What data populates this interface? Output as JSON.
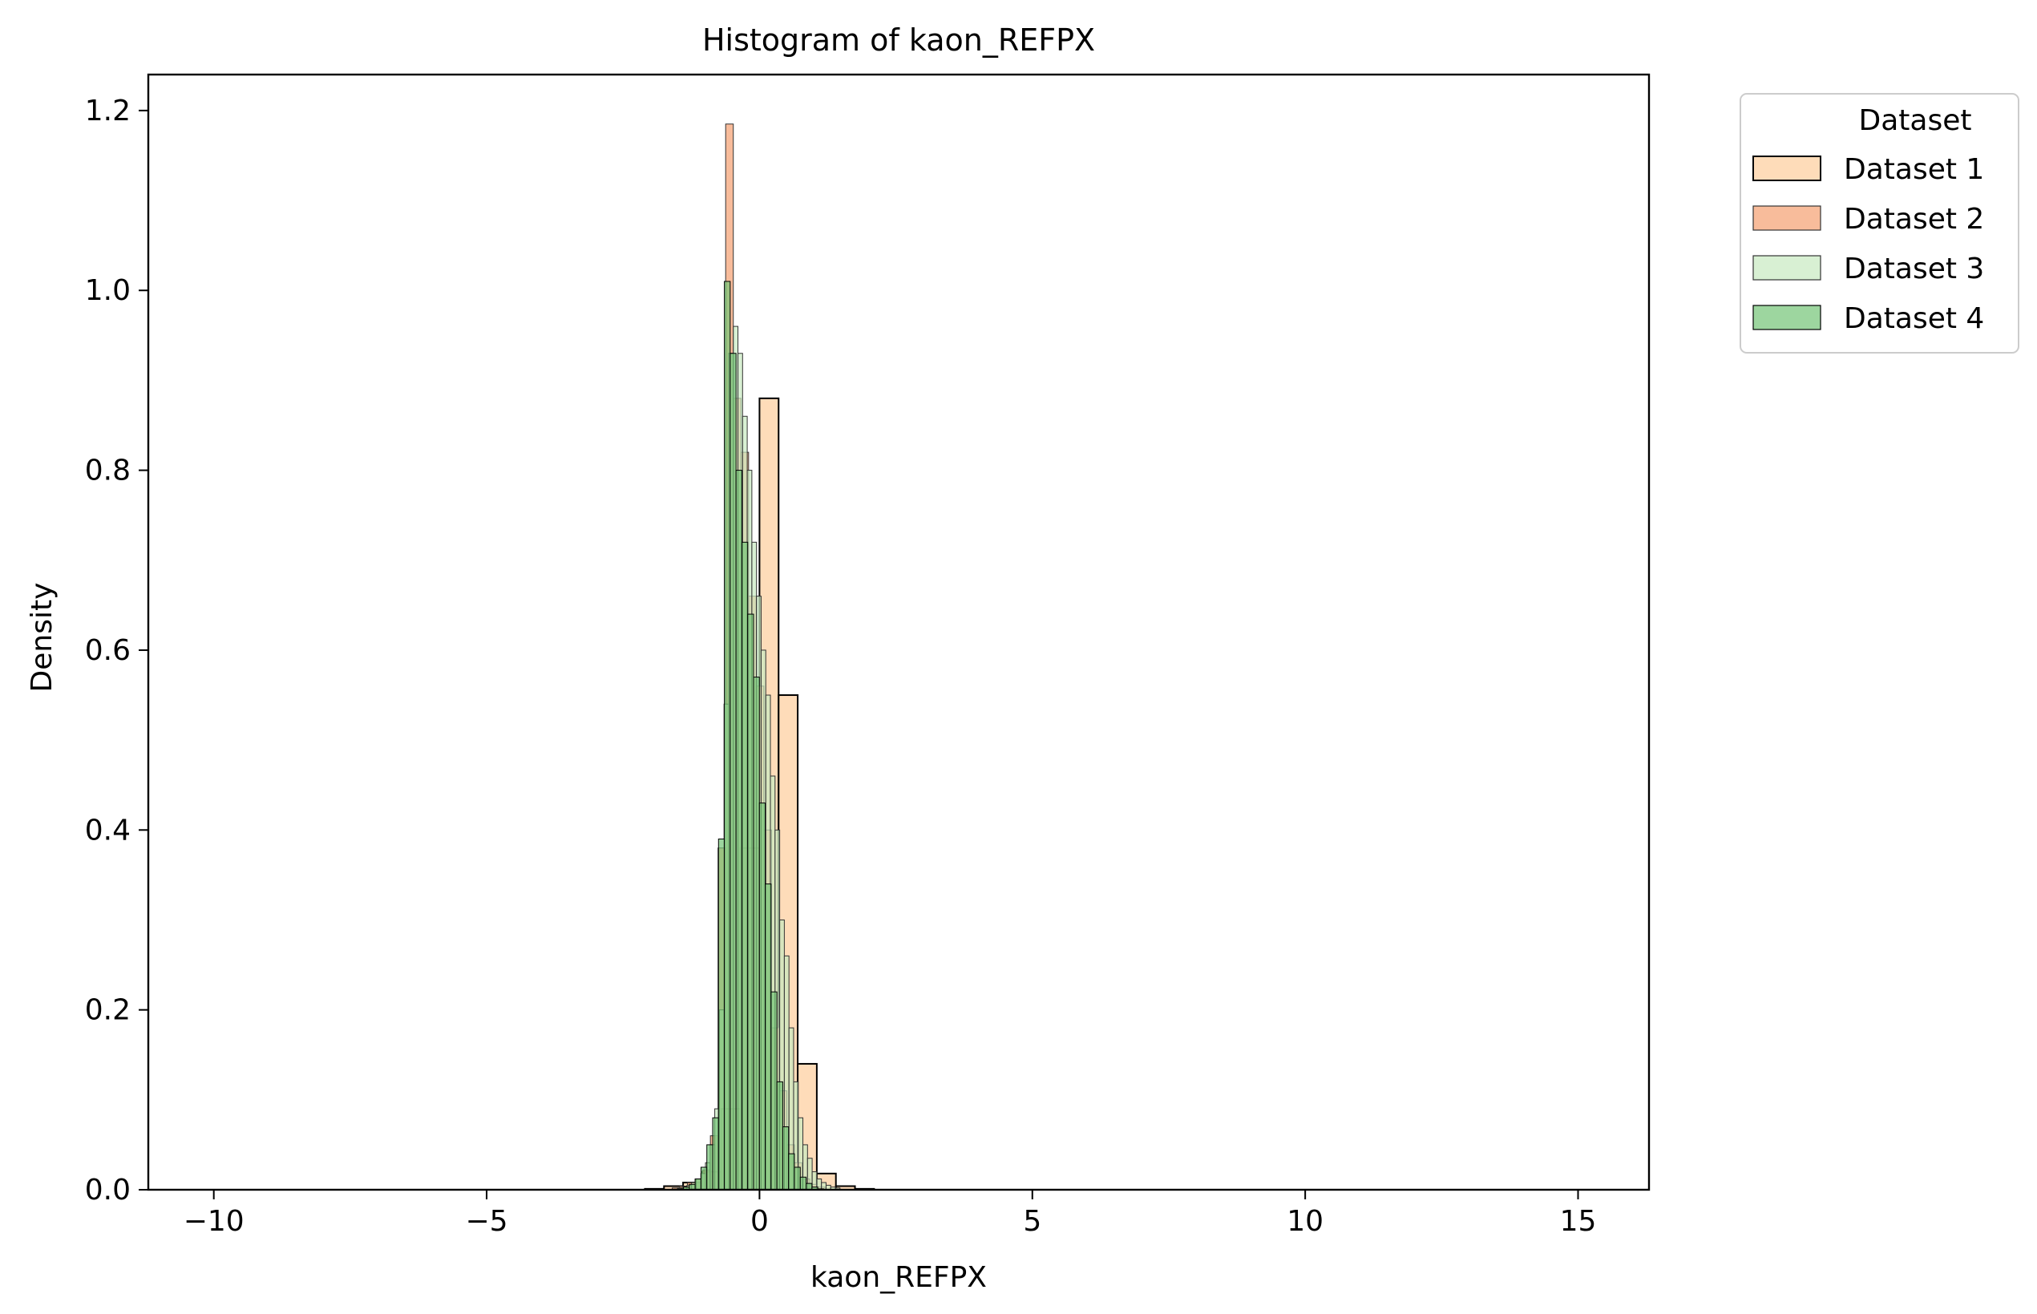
{
  "chart_data": {
    "type": "bar",
    "title": "Histogram of kaon_REFPX",
    "xlabel": "kaon_REFPX",
    "ylabel": "Density",
    "xlim": [
      -11.2,
      16.3
    ],
    "ylim": [
      0,
      1.24
    ],
    "x_ticks": [
      -10,
      -5,
      0,
      5,
      10,
      15
    ],
    "x_tick_labels": [
      "−10",
      "−5",
      "0",
      "5",
      "10",
      "15"
    ],
    "y_ticks": [
      0.0,
      0.2,
      0.4,
      0.6,
      0.8,
      1.0,
      1.2
    ],
    "y_tick_labels": [
      "0.0",
      "0.2",
      "0.4",
      "0.6",
      "0.8",
      "1.0",
      "1.2"
    ],
    "grid": false,
    "legend": {
      "title": "Dataset",
      "placement": "upper-left-outside"
    },
    "series": [
      {
        "name": "Dataset 1",
        "color": "#fdd0a2",
        "edge": "#000000",
        "bin_width": 0.35,
        "x_start": -2.1,
        "values": [
          0.001,
          0.004,
          0.008,
          0.02,
          0.09,
          0.38,
          0.88,
          0.55,
          0.14,
          0.018,
          0.004,
          0.001
        ]
      },
      {
        "name": "Dataset 2",
        "color": "#f5a071",
        "edge": "#333333",
        "bin_width": 0.14,
        "x_start": -1.6,
        "values": [
          0.002,
          0.004,
          0.008,
          0.012,
          0.022,
          0.06,
          0.38,
          1.185,
          0.88,
          0.82,
          0.66,
          0.56,
          0.4,
          0.18,
          0.11,
          0.05,
          0.03,
          0.012,
          0.006,
          0.003
        ]
      },
      {
        "name": "Dataset 3",
        "color": "#c7e9c0",
        "edge": "#333333",
        "bin_width": 0.085,
        "x_start": -1.5,
        "values": [
          0.002,
          0.003,
          0.005,
          0.008,
          0.012,
          0.018,
          0.03,
          0.05,
          0.09,
          0.2,
          0.54,
          0.93,
          0.96,
          0.93,
          0.86,
          0.8,
          0.72,
          0.66,
          0.6,
          0.55,
          0.46,
          0.4,
          0.3,
          0.26,
          0.18,
          0.12,
          0.08,
          0.05,
          0.035,
          0.02,
          0.012,
          0.008,
          0.005,
          0.003,
          0.002
        ]
      },
      {
        "name": "Dataset 4",
        "color": "#74c476",
        "edge": "#000000",
        "bin_width": 0.107,
        "x_start": -1.5,
        "values": [
          0.001,
          0.003,
          0.006,
          0.012,
          0.025,
          0.05,
          0.08,
          0.39,
          1.01,
          0.93,
          0.8,
          0.72,
          0.64,
          0.57,
          0.43,
          0.34,
          0.22,
          0.12,
          0.07,
          0.04,
          0.025,
          0.014,
          0.007,
          0.003,
          0.001
        ]
      }
    ]
  }
}
